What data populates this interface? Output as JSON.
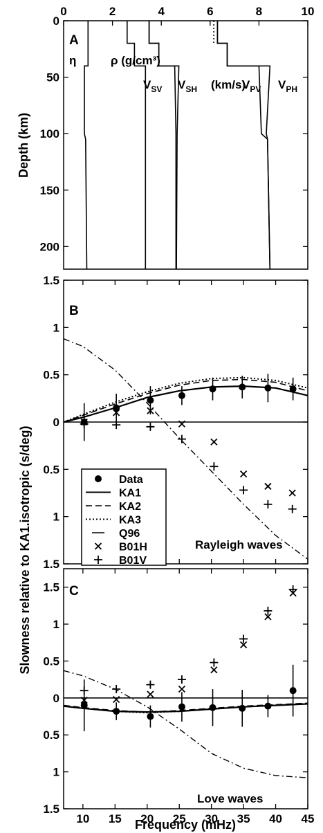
{
  "figure": {
    "shared_ylabel": "Slowness relative to KA1.isotropic (s/deg)",
    "xlabel": "Frequency (mHz)"
  },
  "chart_data": [
    {
      "panel": "A",
      "type": "line",
      "x_axis_position": "top",
      "xlim": [
        0,
        10
      ],
      "xticks": [
        "0",
        "2",
        "4",
        "6",
        "8",
        "10"
      ],
      "ylabel": "Depth (km)",
      "ylim": [
        0,
        220
      ],
      "y_inverted": true,
      "yticks": [
        "0",
        "50",
        "100",
        "150",
        "200"
      ],
      "annotations": {
        "eta": "η",
        "rho": "ρ (g/cm³)",
        "vsv": "V",
        "vsv_sub": "SV",
        "vsh": "V",
        "vsh_sub": "SH",
        "units": "(km/s)",
        "vpv": "V",
        "vpv_sub": "PV",
        "vph": "V",
        "vph_sub": "PH"
      },
      "profiles": [
        {
          "id": "eta",
          "points": [
            [
              1.0,
              0
            ],
            [
              1.0,
              40
            ],
            [
              0.85,
              40
            ],
            [
              0.85,
              100
            ],
            [
              0.9,
              105
            ],
            [
              0.95,
              220
            ]
          ]
        },
        {
          "id": "rho",
          "points": [
            [
              2.6,
              0
            ],
            [
              2.6,
              20
            ],
            [
              2.9,
              20
            ],
            [
              2.9,
              40
            ],
            [
              3.35,
              40
            ],
            [
              3.35,
              220
            ]
          ]
        },
        {
          "id": "vsv",
          "points": [
            [
              3.5,
              0
            ],
            [
              3.5,
              20
            ],
            [
              3.9,
              20
            ],
            [
              3.9,
              40
            ],
            [
              4.55,
              40
            ],
            [
              4.6,
              100
            ],
            [
              4.6,
              220
            ]
          ]
        },
        {
          "id": "vsh",
          "points": [
            [
              3.5,
              0
            ],
            [
              3.5,
              20
            ],
            [
              3.9,
              20
            ],
            [
              3.9,
              40
            ],
            [
              4.72,
              40
            ],
            [
              4.65,
              100
            ],
            [
              4.62,
              220
            ]
          ]
        },
        {
          "id": "vpv",
          "points": [
            [
              6.3,
              0
            ],
            [
              6.3,
              20
            ],
            [
              6.7,
              20
            ],
            [
              6.7,
              40
            ],
            [
              8.0,
              40
            ],
            [
              8.1,
              100
            ],
            [
              8.35,
              105
            ],
            [
              8.45,
              220
            ]
          ]
        },
        {
          "id": "vph",
          "points": [
            [
              6.3,
              0
            ],
            [
              6.3,
              20
            ],
            [
              6.7,
              20
            ],
            [
              6.7,
              40
            ],
            [
              8.45,
              40
            ],
            [
              8.3,
              100
            ],
            [
              8.35,
              105
            ],
            [
              8.45,
              220
            ]
          ]
        },
        {
          "id": "vp-dotted",
          "points": [
            [
              6.15,
              0
            ],
            [
              6.15,
              20
            ]
          ]
        }
      ]
    },
    {
      "panel": "B",
      "type": "line",
      "annotation": "Rayleigh waves",
      "xlim": [
        7,
        45
      ],
      "ylim": [
        -1.5,
        1.5
      ],
      "yticks": [
        "1.5",
        "1",
        "0.5",
        "0",
        "0.5",
        "1",
        "1.5"
      ],
      "ytick_values": [
        1.5,
        1,
        0.5,
        0,
        -0.5,
        -1,
        -1.5
      ],
      "legend": [
        "Data",
        "KA1",
        "KA2",
        "KA3",
        "Q96",
        "B01H",
        "B01V"
      ],
      "data": {
        "x": [
          10.2,
          15.2,
          20.5,
          25.4,
          30.2,
          34.8,
          38.8,
          42.7
        ],
        "y": [
          0.0,
          0.15,
          0.23,
          0.28,
          0.35,
          0.37,
          0.36,
          0.35
        ],
        "err": [
          0.2,
          0.15,
          0.15,
          0.1,
          0.12,
          0.12,
          0.15,
          0.12
        ]
      },
      "series": [
        {
          "name": "KA1",
          "x": [
            7,
            10,
            15,
            20,
            25,
            30,
            35,
            40,
            45
          ],
          "y": [
            0.0,
            0.05,
            0.15,
            0.26,
            0.33,
            0.37,
            0.38,
            0.36,
            0.28
          ]
        },
        {
          "name": "KA2",
          "x": [
            7,
            10,
            15,
            20,
            25,
            30,
            35,
            40,
            45
          ],
          "y": [
            0.0,
            0.07,
            0.19,
            0.3,
            0.39,
            0.44,
            0.45,
            0.42,
            0.33
          ]
        },
        {
          "name": "KA3",
          "x": [
            7,
            10,
            15,
            20,
            25,
            30,
            35,
            40,
            45
          ],
          "y": [
            0.0,
            0.08,
            0.21,
            0.32,
            0.41,
            0.46,
            0.47,
            0.44,
            0.36
          ]
        },
        {
          "name": "Q96",
          "x": [
            7,
            10,
            15,
            20,
            25,
            30,
            35,
            40,
            45
          ],
          "y": [
            0.88,
            0.8,
            0.55,
            0.2,
            -0.17,
            -0.52,
            -0.87,
            -1.2,
            -1.45
          ]
        },
        {
          "name": "B01H",
          "x": [
            10.2,
            15.2,
            20.5,
            25.4,
            30.4,
            35.0,
            38.8,
            42.6
          ],
          "y": [
            0.0,
            0.1,
            0.12,
            -0.02,
            -0.21,
            -0.55,
            -0.68,
            -0.75
          ]
        },
        {
          "name": "B01V",
          "x": [
            10.2,
            15.2,
            20.5,
            25.4,
            30.4,
            35.0,
            38.8,
            42.6
          ],
          "y": [
            -0.02,
            -0.03,
            -0.05,
            -0.18,
            -0.47,
            -0.72,
            -0.87,
            -0.92
          ]
        }
      ]
    },
    {
      "panel": "C",
      "type": "line",
      "annotation": "Love waves",
      "xlim": [
        7,
        45
      ],
      "xticks": [
        "10",
        "15",
        "20",
        "25",
        "30",
        "35",
        "40",
        "45"
      ],
      "xtick_values": [
        10,
        15,
        20,
        25,
        30,
        35,
        40,
        45
      ],
      "ylim": [
        -1.5,
        1.75
      ],
      "yticks": [
        "1.5",
        "1",
        "0.5",
        "0",
        "0.5",
        "1",
        "1.5"
      ],
      "ytick_values": [
        1.5,
        1,
        0.5,
        0,
        -0.5,
        -1,
        -1.5
      ],
      "data": {
        "x": [
          10.2,
          15.2,
          20.5,
          25.4,
          30.2,
          34.8,
          38.8,
          42.7
        ],
        "y": [
          -0.1,
          -0.18,
          -0.25,
          -0.12,
          -0.13,
          -0.14,
          -0.11,
          0.1
        ],
        "err": [
          0.35,
          0.12,
          0.15,
          0.2,
          0.25,
          0.25,
          0.15,
          0.35
        ]
      },
      "series": [
        {
          "name": "KA1",
          "x": [
            7,
            10,
            15,
            20,
            25,
            30,
            35,
            40,
            45
          ],
          "y": [
            -0.11,
            -0.14,
            -0.18,
            -0.19,
            -0.18,
            -0.15,
            -0.12,
            -0.1,
            -0.08
          ]
        },
        {
          "name": "KA2",
          "x": [
            7,
            10,
            15,
            20,
            25,
            30,
            35,
            40,
            45
          ],
          "y": [
            -0.1,
            -0.13,
            -0.17,
            -0.19,
            -0.17,
            -0.14,
            -0.11,
            -0.09,
            -0.07
          ]
        },
        {
          "name": "KA3",
          "x": [
            7,
            10,
            15,
            20,
            25,
            30,
            35,
            40,
            45
          ],
          "y": [
            -0.11,
            -0.14,
            -0.18,
            -0.2,
            -0.18,
            -0.15,
            -0.12,
            -0.1,
            -0.08
          ]
        },
        {
          "name": "Q96",
          "x": [
            7,
            10,
            15,
            20,
            25,
            30,
            35,
            40,
            45
          ],
          "y": [
            0.37,
            0.3,
            0.12,
            -0.12,
            -0.42,
            -0.75,
            -0.95,
            -1.05,
            -1.08
          ]
        },
        {
          "name": "B01H",
          "x": [
            10.2,
            15.2,
            20.5,
            25.4,
            30.4,
            35.0,
            38.8,
            42.7
          ],
          "y": [
            -0.03,
            -0.02,
            0.05,
            0.12,
            0.38,
            0.72,
            1.1,
            1.42
          ]
        },
        {
          "name": "B01V",
          "x": [
            10.2,
            15.2,
            20.5,
            25.4,
            30.4,
            35.0,
            38.8,
            42.7
          ],
          "y": [
            0.1,
            0.12,
            0.18,
            0.25,
            0.48,
            0.8,
            1.18,
            1.47
          ]
        }
      ]
    }
  ]
}
